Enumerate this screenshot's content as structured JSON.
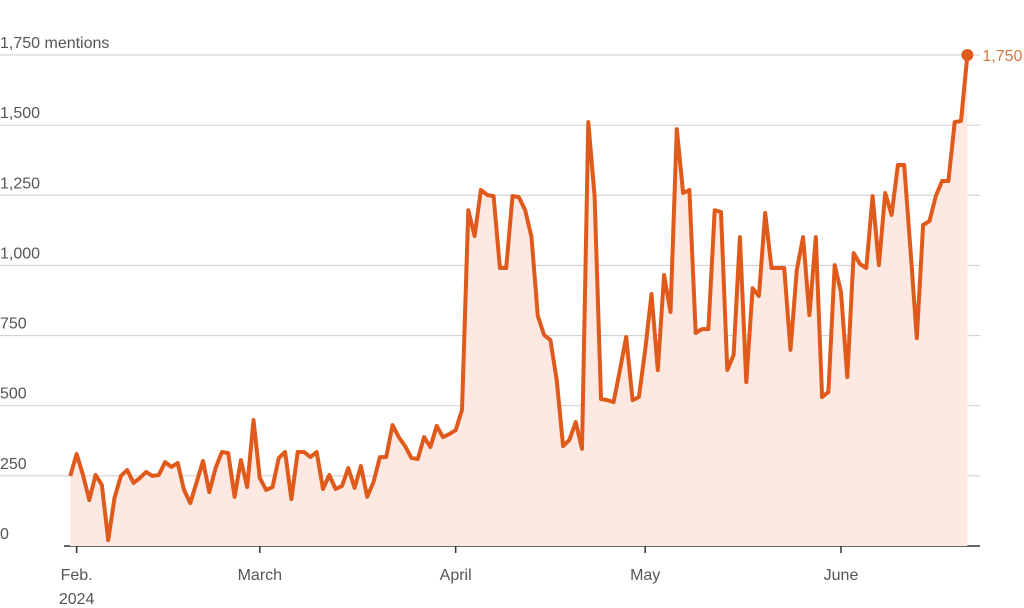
{
  "chart_data": {
    "type": "line",
    "x": [
      -1,
      0,
      1,
      2,
      3,
      4,
      5,
      6,
      7,
      8,
      9,
      10,
      11,
      12,
      13,
      14,
      15,
      16,
      17,
      18,
      19,
      20,
      21,
      22,
      23,
      24,
      25,
      26,
      27,
      28,
      29,
      30,
      31,
      32,
      33,
      34,
      35,
      36,
      37,
      38,
      39,
      40,
      41,
      42,
      43,
      44,
      45,
      46,
      47,
      48,
      49,
      50,
      51,
      52,
      53,
      54,
      55,
      56,
      57,
      58,
      59,
      60,
      61,
      62,
      63,
      64,
      65,
      66,
      67,
      68,
      69,
      70,
      71,
      72,
      73,
      74,
      75,
      76,
      77,
      78,
      79,
      80,
      81,
      82,
      83,
      84,
      85,
      86,
      87,
      88,
      89,
      90,
      91,
      92,
      93,
      94,
      95,
      96,
      97,
      98,
      99,
      100,
      101,
      102,
      103,
      104,
      105,
      106,
      107,
      108,
      109,
      110,
      111,
      112,
      113,
      114,
      115,
      116,
      117,
      118,
      119,
      120,
      121,
      122,
      123,
      124,
      125,
      126,
      127,
      128,
      129,
      130,
      131,
      132,
      133,
      134,
      135,
      136,
      137,
      138,
      139,
      140,
      141
    ],
    "values": [
      250,
      328,
      253,
      164,
      253,
      217,
      21,
      171,
      250,
      271,
      225,
      242,
      264,
      250,
      253,
      299,
      282,
      296,
      200,
      153,
      228,
      303,
      192,
      278,
      335,
      331,
      175,
      306,
      210,
      449,
      242,
      200,
      210,
      314,
      335,
      167,
      335,
      335,
      317,
      335,
      203,
      253,
      203,
      214,
      278,
      207,
      285,
      175,
      228,
      317,
      317,
      431,
      388,
      356,
      314,
      310,
      388,
      353,
      428,
      388,
      399,
      413,
      485,
      1197,
      1105,
      1269,
      1251,
      1247,
      991,
      991,
      1247,
      1244,
      1197,
      1101,
      820,
      752,
      734,
      592,
      356,
      378,
      442,
      346,
      1511,
      1247,
      524,
      520,
      513,
      627,
      745,
      520,
      531,
      699,
      898,
      627,
      966,
      834,
      1486,
      1258,
      1269,
      759,
      773,
      773,
      1197,
      1190,
      627,
      681,
      1101,
      584,
      919,
      891,
      1187,
      991,
      991,
      991,
      699,
      984,
      1101,
      823,
      1101,
      531,
      549,
      1001,
      905,
      602,
      1044,
      1005,
      991,
      1247,
      1001,
      1258,
      1180,
      1358,
      1358,
      1055,
      741,
      1144,
      1158,
      1247,
      1301,
      1301,
      1511,
      1515,
      1750
    ],
    "last_value_label": "1,750",
    "color": "#e05a1c",
    "area_color": "#fde9e2",
    "label_color": "#d9773a",
    "xlim": [
      -2,
      143
    ],
    "xticks": [
      {
        "value": 0,
        "label": "Feb.\n2024"
      },
      {
        "value": 29,
        "label": "March"
      },
      {
        "value": 60,
        "label": "April"
      },
      {
        "value": 90,
        "label": "May"
      },
      {
        "value": 121,
        "label": "June"
      }
    ],
    "ylim": [
      0,
      1750
    ],
    "yticks": [
      0,
      250,
      500,
      750,
      {
        "value": 1000,
        "label": "1,000"
      },
      {
        "value": 1250,
        "label": "1,250"
      },
      {
        "value": 1500,
        "label": "1,500"
      },
      {
        "value": 1750,
        "label": "1,750 mentions"
      }
    ],
    "grid": true
  }
}
